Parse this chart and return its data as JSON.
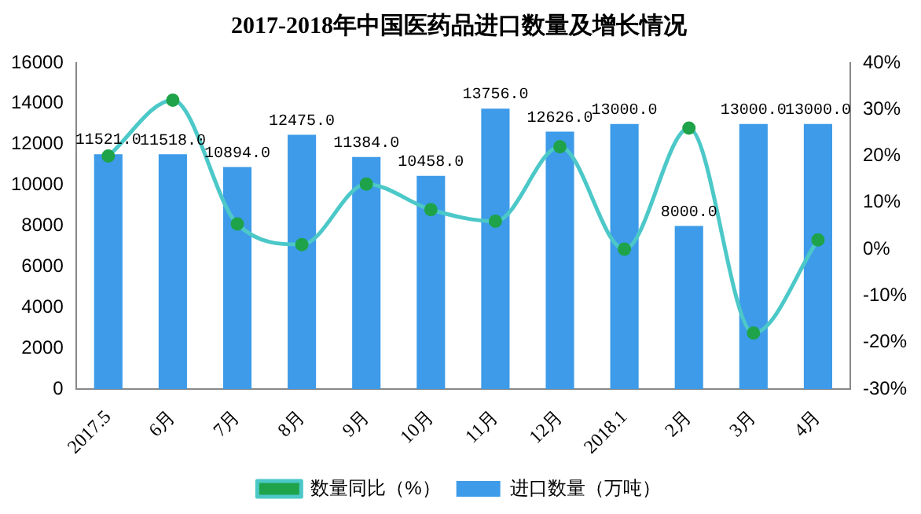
{
  "chart_data": {
    "type": "bar",
    "title": "2017-2018年中国医药品进口数量及增长情况",
    "categories": [
      "2017.5",
      "6月",
      "7月",
      "8月",
      "9月",
      "10月",
      "11月",
      "12月",
      "2018.1",
      "2月",
      "3月",
      "4月"
    ],
    "series": [
      {
        "name": "进口数量（万吨）",
        "color": "#3d9be9",
        "values": [
          11521,
          11518,
          10894,
          12475,
          11384,
          10458,
          13756,
          12626,
          13000,
          8000,
          13000,
          13000
        ],
        "value_labels": [
          "11521.0",
          "11518.0",
          "10894.0",
          "12475.0",
          "11384.0",
          "10458.0",
          "13756.0",
          "12626.0",
          "13000.0",
          "8000.0",
          "13000.0",
          "13000.0"
        ]
      },
      {
        "name": "数量同比（%）",
        "type": "line",
        "axis": "y2",
        "color": "#4cc8c8",
        "values": [
          20,
          32,
          5.4,
          1,
          14,
          8.5,
          6,
          22,
          0,
          26,
          -18,
          2
        ]
      }
    ],
    "ylim": [
      0,
      16000
    ],
    "yticks": [
      0,
      2000,
      4000,
      6000,
      8000,
      10000,
      12000,
      14000,
      16000
    ],
    "y2lim": [
      -30,
      40
    ],
    "y2ticks": [
      {
        "value": -30,
        "label": "-30%"
      },
      {
        "value": -20,
        "label": "-20%"
      },
      {
        "value": -10,
        "label": "-10%"
      },
      {
        "value": 0,
        "label": "0%"
      },
      {
        "value": 10,
        "label": "10%"
      },
      {
        "value": 20,
        "label": "20%"
      },
      {
        "value": 30,
        "label": "30%"
      },
      {
        "value": 40,
        "label": "40%"
      }
    ],
    "grid": false,
    "legend": "bottom",
    "marker": "circle",
    "line_style": "solid"
  }
}
